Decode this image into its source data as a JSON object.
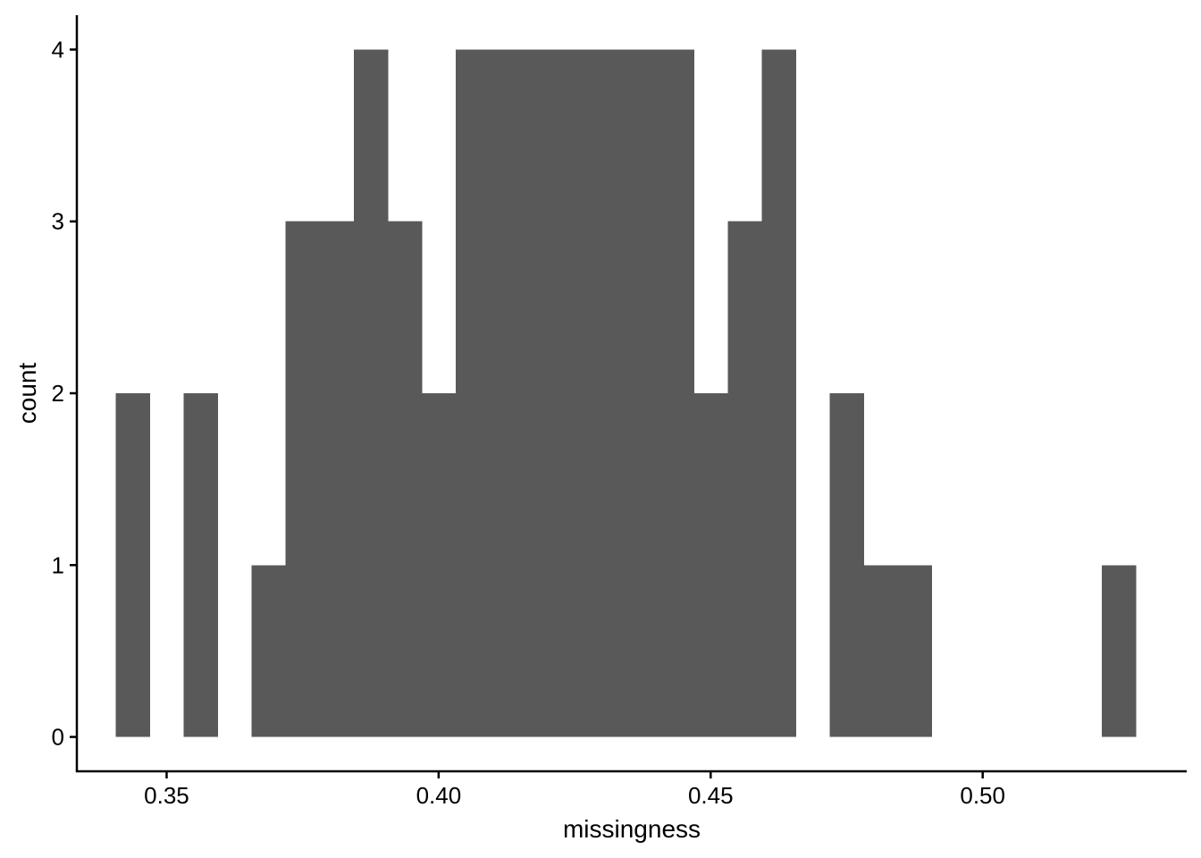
{
  "chart_data": {
    "type": "bar",
    "subtype": "histogram",
    "xlabel": "missingness",
    "ylabel": "count",
    "xlim": [
      0.3335,
      0.5375
    ],
    "ylim": [
      -0.2,
      4.2
    ],
    "grid": false,
    "legend": "none",
    "bar_color": "#595959",
    "bin_width": 0.00625,
    "x_ticks": [
      {
        "value": 0.35,
        "label": "0.35"
      },
      {
        "value": 0.4,
        "label": "0.40"
      },
      {
        "value": 0.45,
        "label": "0.45"
      },
      {
        "value": 0.5,
        "label": "0.50"
      }
    ],
    "y_ticks": [
      {
        "value": 0,
        "label": "0"
      },
      {
        "value": 1,
        "label": "1"
      },
      {
        "value": 2,
        "label": "2"
      },
      {
        "value": 3,
        "label": "3"
      },
      {
        "value": 4,
        "label": "4"
      }
    ],
    "bins": [
      {
        "x0": 0.34063,
        "x1": 0.34688,
        "count": 2
      },
      {
        "x0": 0.34688,
        "x1": 0.35313,
        "count": 0
      },
      {
        "x0": 0.35313,
        "x1": 0.35938,
        "count": 2
      },
      {
        "x0": 0.35938,
        "x1": 0.36563,
        "count": 0
      },
      {
        "x0": 0.36563,
        "x1": 0.37188,
        "count": 1
      },
      {
        "x0": 0.37188,
        "x1": 0.37813,
        "count": 3
      },
      {
        "x0": 0.37813,
        "x1": 0.38438,
        "count": 3
      },
      {
        "x0": 0.38438,
        "x1": 0.39063,
        "count": 4
      },
      {
        "x0": 0.39063,
        "x1": 0.39688,
        "count": 3
      },
      {
        "x0": 0.39688,
        "x1": 0.40313,
        "count": 2
      },
      {
        "x0": 0.40313,
        "x1": 0.40938,
        "count": 4
      },
      {
        "x0": 0.40938,
        "x1": 0.41563,
        "count": 4
      },
      {
        "x0": 0.41563,
        "x1": 0.42188,
        "count": 4
      },
      {
        "x0": 0.42188,
        "x1": 0.42813,
        "count": 4
      },
      {
        "x0": 0.42813,
        "x1": 0.43438,
        "count": 4
      },
      {
        "x0": 0.43438,
        "x1": 0.44063,
        "count": 4
      },
      {
        "x0": 0.44063,
        "x1": 0.44688,
        "count": 4
      },
      {
        "x0": 0.44688,
        "x1": 0.45313,
        "count": 2
      },
      {
        "x0": 0.45313,
        "x1": 0.45938,
        "count": 3
      },
      {
        "x0": 0.45938,
        "x1": 0.46563,
        "count": 4
      },
      {
        "x0": 0.46563,
        "x1": 0.47188,
        "count": 0
      },
      {
        "x0": 0.47188,
        "x1": 0.47813,
        "count": 2
      },
      {
        "x0": 0.47813,
        "x1": 0.48438,
        "count": 1
      },
      {
        "x0": 0.48438,
        "x1": 0.49063,
        "count": 1
      },
      {
        "x0": 0.49063,
        "x1": 0.49688,
        "count": 0
      },
      {
        "x0": 0.49688,
        "x1": 0.50313,
        "count": 0
      },
      {
        "x0": 0.50313,
        "x1": 0.50938,
        "count": 0
      },
      {
        "x0": 0.50938,
        "x1": 0.51563,
        "count": 0
      },
      {
        "x0": 0.51563,
        "x1": 0.52188,
        "count": 0
      },
      {
        "x0": 0.52188,
        "x1": 0.52813,
        "count": 1
      }
    ]
  }
}
